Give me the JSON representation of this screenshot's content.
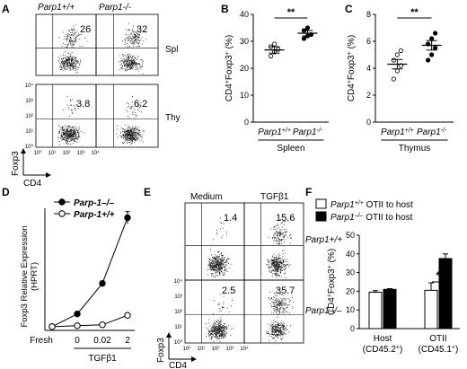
{
  "figure": {
    "panel_labels": [
      "A",
      "B",
      "C",
      "D",
      "E",
      "F"
    ]
  },
  "colors": {
    "ink": "#000000",
    "dots": "#222222",
    "bar_filled": "#000000",
    "bar_open": "#ffffff"
  },
  "panel_a": {
    "col_headers": [
      "Parp1+/+",
      "Parp1-/-"
    ],
    "row_labels": [
      "Spl",
      "Thy"
    ],
    "top_values": [
      "26",
      "32"
    ],
    "bottom_values": [
      "3.8",
      "6.2"
    ],
    "y_ticks": [
      "10⁴",
      "10³",
      "10²",
      "10¹",
      "10⁰"
    ],
    "x_ticks": [
      "10⁰",
      "10¹",
      "10²",
      "10³",
      "10⁴"
    ],
    "ylabel": "Foxp3",
    "xlabel": "CD4"
  },
  "panel_e": {
    "col_headers": [
      "Medium",
      "TGFβ1"
    ],
    "row_labels": [
      "Parp1+/+",
      "Parp1–/–"
    ],
    "top_values": [
      "1.4",
      "15.6"
    ],
    "bottom_values": [
      "2.5",
      "35.7"
    ],
    "y_ticks": [
      "10⁴",
      "10³",
      "10²",
      "10¹",
      "10⁰"
    ],
    "x_ticks": [
      "10⁰",
      "10¹",
      "10²",
      "10³",
      "10⁴"
    ],
    "ylabel": "Foxp3",
    "xlabel": "CD4"
  },
  "chart_data": [
    {
      "panel": "B",
      "type": "scatter",
      "ylabel": "CD4+Foxp3+ (%)",
      "xlabel": "Spleen",
      "categories": [
        "Parp1+/+",
        "Parp1-/-"
      ],
      "ylim": [
        0,
        40
      ],
      "yticks": [
        "0",
        "10",
        "20",
        "30",
        "40"
      ],
      "series": [
        {
          "category": "Parp1+/+",
          "marker": "open",
          "values": [
            24.5,
            26,
            27,
            28,
            29
          ],
          "mean": 26.8,
          "sem": 1.2
        },
        {
          "category": "Parp1-/-",
          "marker": "filled",
          "values": [
            31,
            32,
            32.5,
            34,
            35
          ],
          "mean": 33,
          "sem": 1.0
        }
      ],
      "significance": "**"
    },
    {
      "panel": "C",
      "type": "scatter",
      "ylabel": "CD4+Foxp3+ (%)",
      "xlabel": "Thymus",
      "categories": [
        "Parp1+/+",
        "Parp1-/-"
      ],
      "ylim": [
        0,
        8
      ],
      "yticks": [
        "0",
        "2",
        "4",
        "6",
        "8"
      ],
      "series": [
        {
          "category": "Parp1+/+",
          "marker": "open",
          "values": [
            3.2,
            3.8,
            4.2,
            4.6,
            5.0,
            5.3
          ],
          "mean": 4.3,
          "sem": 0.35
        },
        {
          "category": "Parp1-/-",
          "marker": "filled",
          "values": [
            4.6,
            5.0,
            5.5,
            5.8,
            6.2,
            6.6
          ],
          "mean": 5.7,
          "sem": 0.35
        }
      ],
      "significance": "**"
    },
    {
      "panel": "D",
      "type": "line",
      "ylabel_lines": [
        "Foxp3 Relative Expression",
        "(HPRT)"
      ],
      "xlabel": "TGFβ1",
      "x": [
        "Fresh",
        "0",
        "0.02",
        "2"
      ],
      "ylim": [
        0,
        26
      ],
      "series": [
        {
          "name": "Parp-1–/–",
          "marker": "filled",
          "values": [
            0.8,
            3.5,
            10,
            24
          ],
          "err": [
            0.3,
            0.5,
            0.5,
            1.3
          ]
        },
        {
          "name": "Parp-1+/+",
          "marker": "open",
          "values": [
            0.8,
            1.0,
            1.2,
            3.2
          ],
          "err": [
            0.2,
            0.2,
            0.2,
            0.4
          ]
        }
      ]
    },
    {
      "panel": "F",
      "type": "bar",
      "ylabel": "CD4+Foxp3+ (%)",
      "categories": [
        "Host",
        "OTII"
      ],
      "category_sublabels": [
        "(CD45.2+)",
        "(CD45.1+)"
      ],
      "ylim": [
        0,
        50
      ],
      "yticks": [
        "0",
        "10",
        "20",
        "30",
        "40",
        "50"
      ],
      "series": [
        {
          "name": "Parp1+/+ OTII to host",
          "fill": "open",
          "values": [
            19.5,
            20.5
          ],
          "err": [
            0.8,
            4.0
          ]
        },
        {
          "name": "Parp1–/– OTII to host",
          "fill": "filled",
          "values": [
            21,
            37.5
          ],
          "err": [
            0.4,
            2.5
          ]
        }
      ],
      "significance": "*"
    }
  ]
}
